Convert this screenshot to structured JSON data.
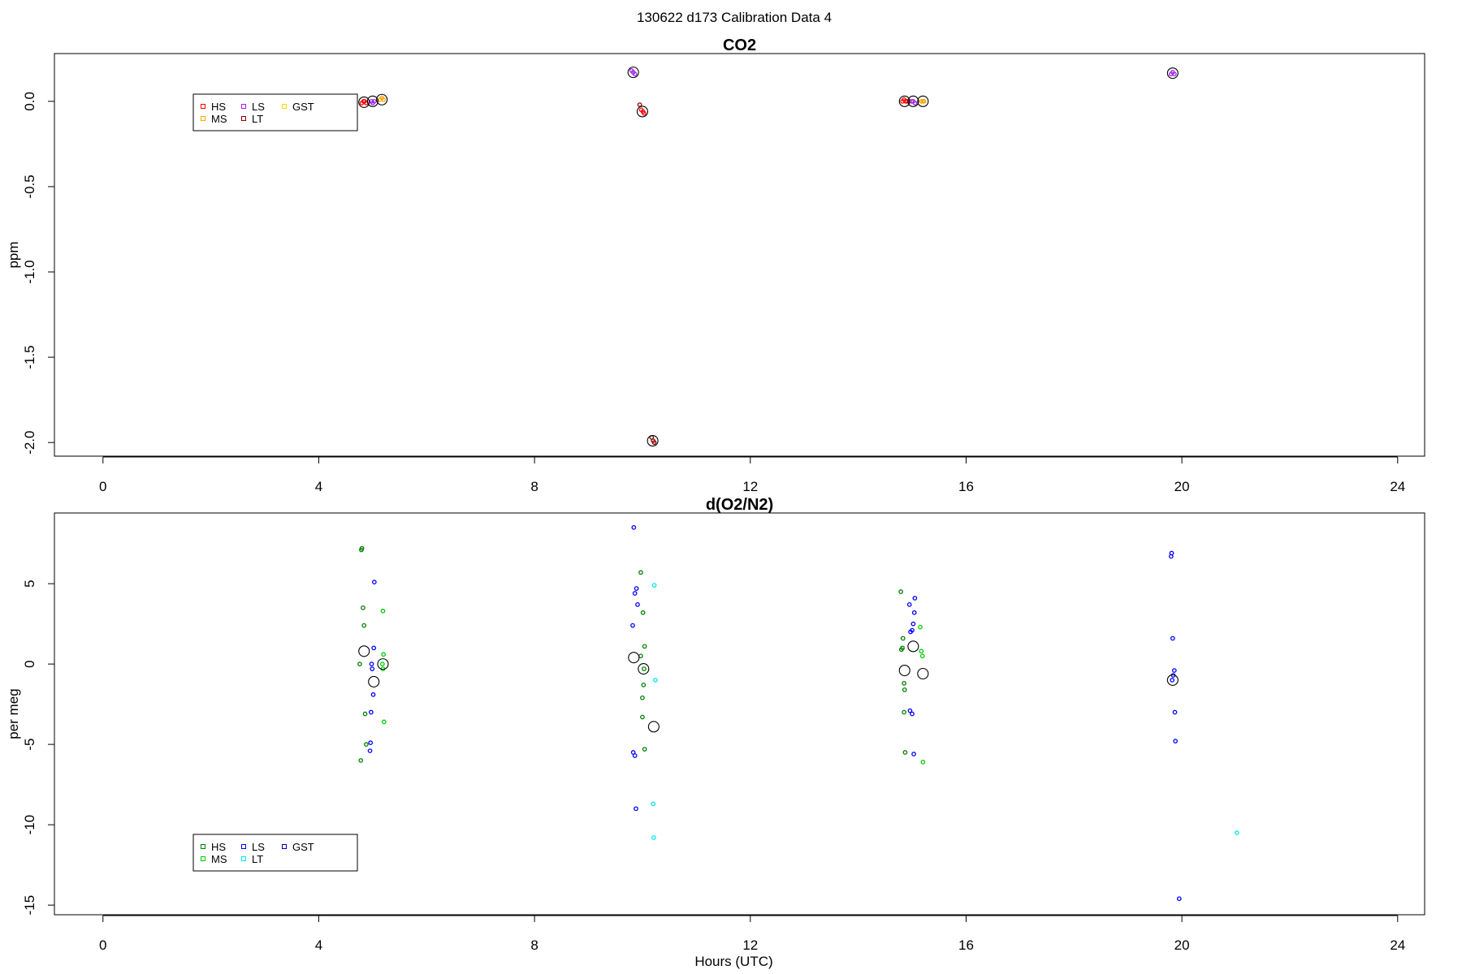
{
  "figure_title": "130622   d173   Calibration Data 4",
  "colors": {
    "HS": "#ff0000",
    "MS": "#ffa500",
    "LS": "#a020f0",
    "LT": "#8b0000",
    "GST": "#ffd700",
    "o2_HS": "#008000",
    "o2_MS": "#00cc00",
    "o2_LS": "#0000ff",
    "o2_LT": "#00e5ee",
    "o2_GST": "#0000aa",
    "mean_circle": "#000000"
  },
  "chart_data": [
    {
      "type": "scatter",
      "title": "CO2",
      "xlabel": "",
      "ylabel": "ppm",
      "xlim": [
        -0.9,
        24.5
      ],
      "ylim": [
        -2.08,
        0.28
      ],
      "xticks": [
        "0",
        "4",
        "8",
        "12",
        "16",
        "20",
        "24"
      ],
      "xtick_values": [
        0,
        4,
        8,
        12,
        16,
        20,
        24
      ],
      "yticks": [
        "0.0",
        "-0.5",
        "-1.0",
        "-1.5",
        "-2.0"
      ],
      "ytick_values": [
        0.0,
        -0.5,
        -1.0,
        -1.5,
        -2.0
      ],
      "legend": {
        "position": "top-left",
        "entries": [
          "HS",
          "MS",
          "LS",
          "LT",
          "GST"
        ]
      },
      "series": [
        {
          "name": "HS",
          "color_key": "HS",
          "x": [
            4.8,
            4.83,
            4.85,
            4.88,
            9.98,
            10.01,
            10.03,
            14.82,
            14.85,
            14.88,
            14.91
          ],
          "y": [
            -0.01,
            0.0,
            0.0,
            -0.01,
            -0.05,
            -0.06,
            -0.07,
            0.0,
            0.01,
            0.0,
            0.0
          ]
        },
        {
          "name": "MS",
          "color_key": "MS",
          "x": [
            5.14,
            5.17,
            5.2,
            15.17,
            15.2,
            15.22
          ],
          "y": [
            0.01,
            0.02,
            0.01,
            0.0,
            0.0,
            0.0
          ]
        },
        {
          "name": "LS",
          "color_key": "LS",
          "x": [
            4.98,
            5.0,
            5.03,
            9.8,
            9.83,
            9.86,
            14.99,
            15.02,
            15.05,
            19.8,
            19.83,
            19.86
          ],
          "y": [
            0.0,
            -0.01,
            0.0,
            0.18,
            0.17,
            0.16,
            0.0,
            0.0,
            -0.01,
            0.16,
            0.17,
            0.16
          ]
        },
        {
          "name": "LT",
          "color_key": "LT",
          "x": [
            9.95,
            10.17,
            10.2,
            10.22
          ],
          "y": [
            -0.02,
            -1.97,
            -1.99,
            -2.0
          ]
        },
        {
          "name": "GST",
          "color_key": "GST",
          "x": [],
          "y": []
        },
        {
          "name": "",
          "color_key": "mean_circle",
          "style": "mean",
          "x": [
            4.84,
            5.0,
            5.17,
            9.83,
            10.0,
            10.19,
            14.86,
            15.02,
            15.2,
            19.83
          ],
          "y": [
            -0.005,
            0.0,
            0.01,
            0.17,
            -0.06,
            -1.99,
            0.0,
            0.0,
            0.0,
            0.165
          ]
        }
      ]
    },
    {
      "type": "scatter",
      "title": "d(O2/N2)",
      "xlabel": "Hours (UTC)",
      "ylabel": "per meg",
      "xlim": [
        -0.9,
        24.5
      ],
      "ylim": [
        -15.6,
        9.4
      ],
      "xticks": [
        "0",
        "4",
        "8",
        "12",
        "16",
        "20",
        "24"
      ],
      "xtick_values": [
        0,
        4,
        8,
        12,
        16,
        20,
        24
      ],
      "yticks": [
        "5",
        "0",
        "-5",
        "-10",
        "-15"
      ],
      "ytick_values": [
        5,
        0,
        -5,
        -10,
        -15
      ],
      "legend": {
        "position": "bottom-left",
        "entries": [
          "HS",
          "MS",
          "LS",
          "LT",
          "GST"
        ]
      },
      "series": [
        {
          "name": "HS",
          "color_key": "o2_HS",
          "x": [
            4.79,
            4.8,
            4.82,
            4.84,
            4.86,
            4.88,
            4.78,
            4.76,
            9.97,
            10.01,
            10.04,
            10.02,
            10.0,
            10.0,
            10.04,
            10.03,
            9.97,
            14.79,
            14.8,
            14.82,
            14.83,
            14.85,
            14.86,
            14.85,
            14.87
          ],
          "y": [
            7.1,
            7.2,
            3.5,
            2.4,
            -3.1,
            -5.0,
            -6.0,
            0.0,
            5.7,
            3.2,
            1.1,
            -1.3,
            -2.1,
            -3.3,
            -5.3,
            -0.3,
            0.5,
            4.5,
            0.9,
            1.0,
            1.6,
            -1.2,
            -1.6,
            -3.0,
            -5.5
          ]
        },
        {
          "name": "MS",
          "color_key": "o2_MS",
          "x": [
            5.19,
            5.2,
            5.18,
            5.21,
            5.19,
            15.15,
            15.17,
            15.19,
            15.2
          ],
          "y": [
            3.3,
            0.6,
            0.0,
            -3.6,
            -0.3,
            2.3,
            0.8,
            0.5,
            -6.1
          ]
        },
        {
          "name": "LS",
          "color_key": "o2_LS",
          "x": [
            5.03,
            5.02,
            4.98,
            4.99,
            5.01,
            4.97,
            4.96,
            4.95,
            9.84,
            9.89,
            9.91,
            9.86,
            9.82,
            9.83,
            9.86,
            9.88,
            14.95,
            14.97,
            15.0,
            15.02,
            15.04,
            15.05,
            14.96,
            15.0,
            15.03,
            19.8,
            19.81,
            19.83,
            19.86,
            19.84,
            19.82,
            19.87,
            19.88,
            19.95
          ],
          "y": [
            5.1,
            1.0,
            0.0,
            -0.3,
            -1.9,
            -3.0,
            -4.9,
            -5.4,
            8.5,
            4.7,
            3.7,
            4.4,
            2.4,
            -5.5,
            -5.7,
            -9.0,
            3.7,
            2.0,
            2.1,
            2.5,
            3.2,
            4.1,
            -2.9,
            -3.1,
            -5.6,
            6.7,
            6.9,
            1.6,
            -0.4,
            -0.7,
            -1.0,
            -3.0,
            -4.8,
            -14.6
          ]
        },
        {
          "name": "LT",
          "color_key": "o2_LT",
          "x": [
            10.22,
            10.24,
            10.2,
            10.21,
            21.02
          ],
          "y": [
            4.9,
            -1.0,
            -8.7,
            -10.8,
            -10.5
          ]
        },
        {
          "name": "GST",
          "color_key": "o2_GST",
          "x": [],
          "y": []
        },
        {
          "name": "",
          "color_key": "mean_circle",
          "style": "mean",
          "x": [
            4.84,
            5.02,
            5.19,
            9.84,
            10.02,
            10.21,
            14.86,
            15.02,
            15.2,
            19.83
          ],
          "y": [
            0.8,
            -1.1,
            0.0,
            0.4,
            -0.3,
            -3.9,
            -0.4,
            1.1,
            -0.6,
            -1.0
          ]
        }
      ]
    }
  ]
}
